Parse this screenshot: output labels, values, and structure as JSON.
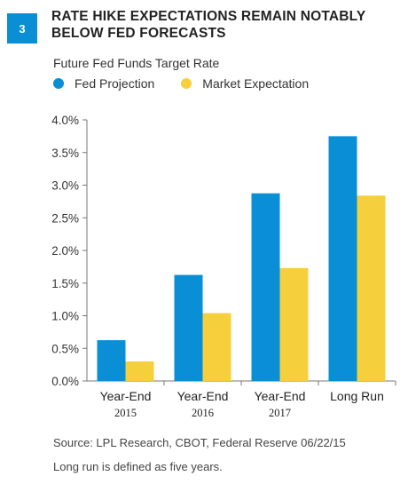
{
  "figure": {
    "number": "3"
  },
  "chart_data": {
    "type": "bar",
    "title": "Rate Hike Expectations Remain Notably Below Fed Forecasts",
    "subtitle": "Future Fed Funds Target Rate",
    "categories": [
      {
        "line1": "Year-End",
        "line2": "2015"
      },
      {
        "line1": "Year-End",
        "line2": "2016"
      },
      {
        "line1": "Year-End",
        "line2": "2017"
      },
      {
        "line1": "Long Run",
        "line2": ""
      }
    ],
    "series": [
      {
        "name": "Fed Projection",
        "color": "#0a8fd6",
        "values": [
          0.625,
          1.625,
          2.875,
          3.75
        ]
      },
      {
        "name": "Market Expectation",
        "color": "#f6cf3c",
        "values": [
          0.3,
          1.04,
          1.73,
          2.84
        ]
      }
    ],
    "ylim": [
      0,
      4.0
    ],
    "yticks": [
      "0.0%",
      "0.5%",
      "1.0%",
      "1.5%",
      "2.0%",
      "2.5%",
      "3.0%",
      "3.5%",
      "4.0%"
    ],
    "xlabel": "",
    "ylabel": "",
    "grid": false,
    "legend_position": "top-left"
  },
  "footer": {
    "source": "Source: LPL Research, CBOT, Federal Reserve  06/22/15",
    "note": "Long run is defined as five years."
  }
}
